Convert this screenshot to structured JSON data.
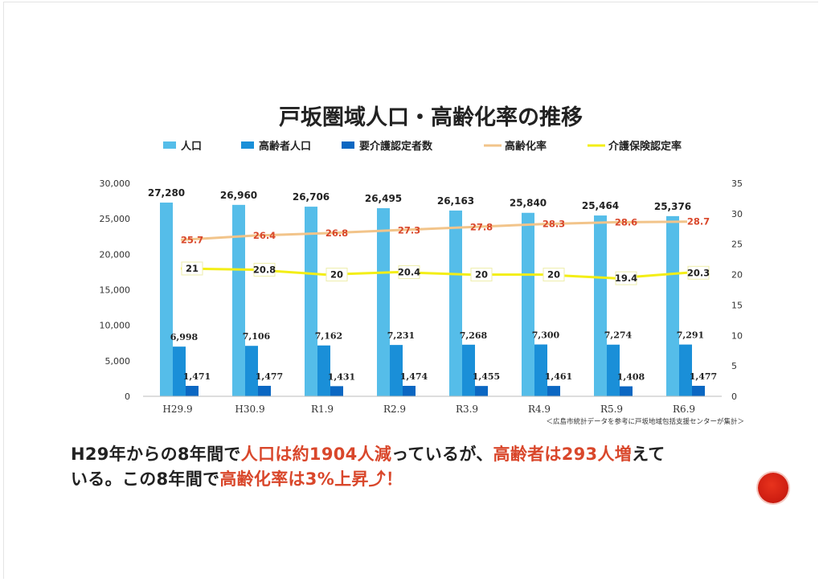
{
  "chart_data": {
    "type": "bar",
    "title": "戸坂圏域人口・高齢化率の推移",
    "categories": [
      "H29.9",
      "H30.9",
      "R1.9",
      "R2.9",
      "R3.9",
      "R4.9",
      "R5.9",
      "R6.9"
    ],
    "series": [
      {
        "name": "人口",
        "type": "bar",
        "axis": "left",
        "color": "#55bde9",
        "values": [
          27280,
          26960,
          26706,
          26495,
          26163,
          25840,
          25464,
          25376
        ],
        "labels": [
          "27,280",
          "26,960",
          "26,706",
          "26,495",
          "26,163",
          "25,840",
          "25,464",
          "25,376"
        ]
      },
      {
        "name": "高齢者人口",
        "type": "bar",
        "axis": "left",
        "color": "#1a8fd8",
        "values": [
          6998,
          7106,
          7162,
          7231,
          7268,
          7300,
          7274,
          7291
        ],
        "labels": [
          "6,998",
          "7,106",
          "7,162",
          "7,231",
          "7,268",
          "7,300",
          "7,274",
          "7,291"
        ]
      },
      {
        "name": "要介護認定者数",
        "type": "bar",
        "axis": "left",
        "color": "#0b67c2",
        "values": [
          1471,
          1477,
          1431,
          1474,
          1455,
          1461,
          1408,
          1477
        ],
        "labels": [
          "1,471",
          "1,477",
          "1,431",
          "1,474",
          "1,455",
          "1,461",
          "1,408",
          "1,477"
        ]
      },
      {
        "name": "高齢化率",
        "type": "line",
        "axis": "right",
        "color": "#f2c48a",
        "values": [
          25.7,
          26.4,
          26.8,
          27.3,
          27.8,
          28.3,
          28.6,
          28.7
        ],
        "labels": [
          "25.7",
          "26.4",
          "26.8",
          "27.3",
          "27.8",
          "28.3",
          "28.6",
          "28.7"
        ]
      },
      {
        "name": "介護保険認定率",
        "type": "line",
        "axis": "right",
        "color": "#f3ee16",
        "values": [
          21,
          20.8,
          20,
          20.4,
          20,
          20,
          19.4,
          20.3
        ],
        "labels": [
          "21",
          "20.8",
          "20",
          "20.4",
          "20",
          "20",
          "19.4",
          "20.3"
        ]
      }
    ],
    "y_left": {
      "ylim": [
        0,
        30000
      ],
      "ticks": [
        "0",
        "5,000",
        "10,000",
        "15,000",
        "20,000",
        "25,000",
        "30,000"
      ]
    },
    "y_right": {
      "ylim": [
        0,
        35
      ],
      "ticks": [
        "0",
        "5",
        "10",
        "15",
        "20",
        "25",
        "30",
        "35"
      ]
    },
    "grid": false,
    "legend": "top",
    "source_note": "＜広島市統計データを参考に戸坂地域包括支援センターが集計＞"
  },
  "note": {
    "line1_parts": [
      "H29年からの8年間で",
      "人口は約1904人減",
      "っているが、",
      "高齢者は293人増",
      "えて"
    ],
    "line2_parts": [
      "いる。この8年間で",
      "高齢化率は3%上昇",
      "⤴",
      "！"
    ]
  },
  "colors": {
    "highlight": "#d9472b",
    "stamp": "#d01f12"
  }
}
